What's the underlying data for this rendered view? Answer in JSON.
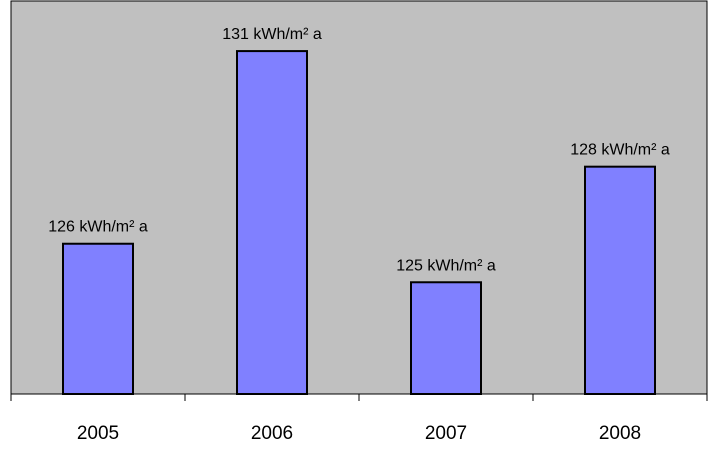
{
  "chart_data": {
    "type": "bar",
    "categories": [
      "2005",
      "2006",
      "2007",
      "2008"
    ],
    "values": [
      126,
      131,
      125,
      128
    ],
    "data_labels": [
      "126 kWh/m² a",
      "131 kWh/m² a",
      "125 kWh/m² a",
      "128 kWh/m² a"
    ],
    "ylim": [
      122.1,
      132.3
    ],
    "grid": false,
    "legend": "none",
    "colors": {
      "plot_background": "#c0c0c0",
      "bar_fill": "#8080ff",
      "bar_stroke": "#000000",
      "axis": "#000000"
    }
  }
}
